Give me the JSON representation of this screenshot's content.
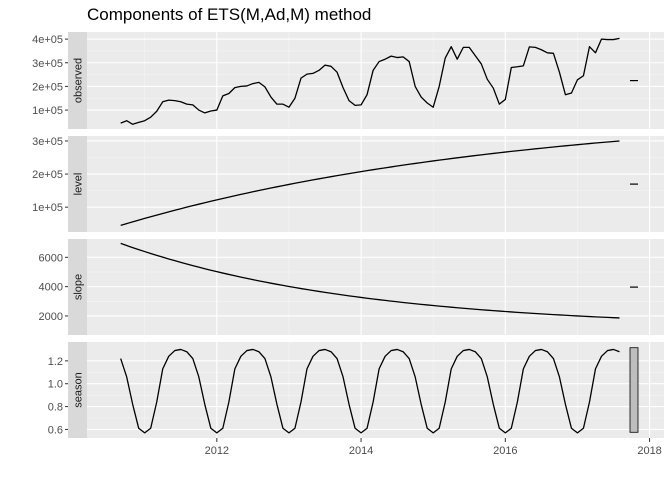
{
  "chart_data": {
    "type": "line",
    "title": "Components of ETS(M,Ad,M) method",
    "xlabel": "",
    "ylabel": "",
    "xlim": [
      2010.2,
      2018.2
    ],
    "x_ticks": [
      2012,
      2014,
      2016,
      2018
    ],
    "x_tick_labels": [
      "2012",
      "2014",
      "2016",
      "2018"
    ],
    "grid": true,
    "colors": {
      "panel_bg": "#ebebeb",
      "strip_bg": "#d9d9d9",
      "grid_major": "#ffffff",
      "line": "#000000",
      "scale_bar": "#bebebe"
    },
    "x": [
      2010.667,
      2010.75,
      2010.833,
      2010.917,
      2011,
      2011.083,
      2011.167,
      2011.25,
      2011.333,
      2011.417,
      2011.5,
      2011.583,
      2011.667,
      2011.75,
      2011.833,
      2011.917,
      2012,
      2012.083,
      2012.167,
      2012.25,
      2012.333,
      2012.417,
      2012.5,
      2012.583,
      2012.667,
      2012.75,
      2012.833,
      2012.917,
      2013,
      2013.083,
      2013.167,
      2013.25,
      2013.333,
      2013.417,
      2013.5,
      2013.583,
      2013.667,
      2013.75,
      2013.833,
      2013.917,
      2014,
      2014.083,
      2014.167,
      2014.25,
      2014.333,
      2014.417,
      2014.5,
      2014.583,
      2014.667,
      2014.75,
      2014.833,
      2014.917,
      2015,
      2015.083,
      2015.167,
      2015.25,
      2015.333,
      2015.417,
      2015.5,
      2015.583,
      2015.667,
      2015.75,
      2015.833,
      2015.917,
      2016,
      2016.083,
      2016.167,
      2016.25,
      2016.333,
      2016.417,
      2016.5,
      2016.583,
      2016.667,
      2016.75,
      2016.833,
      2016.917,
      2017,
      2017.083,
      2017.167,
      2017.25,
      2017.333,
      2017.417,
      2017.5,
      2017.583
    ],
    "panels": [
      {
        "name": "observed",
        "ylim": [
          20000,
          430000
        ],
        "y_ticks": [
          100000,
          200000,
          300000,
          400000
        ],
        "y_tick_labels": [
          "1e+05",
          "2e+05",
          "3e+05",
          "4e+05"
        ],
        "scale_bar": 1800,
        "values": [
          45000,
          55000,
          40000,
          48000,
          55000,
          70000,
          95000,
          135000,
          142000,
          140000,
          135000,
          125000,
          122000,
          100000,
          88000,
          96000,
          100000,
          160000,
          170000,
          195000,
          200000,
          202000,
          212000,
          217000,
          198000,
          155000,
          125000,
          125000,
          112000,
          150000,
          235000,
          252000,
          255000,
          268000,
          290000,
          285000,
          260000,
          195000,
          140000,
          120000,
          122000,
          165000,
          268000,
          305000,
          315000,
          328000,
          322000,
          325000,
          305000,
          200000,
          155000,
          130000,
          112000,
          200000,
          320000,
          368000,
          315000,
          365000,
          365000,
          330000,
          295000,
          230000,
          193000,
          125000,
          145000,
          280000,
          283000,
          287000,
          367000,
          365000,
          355000,
          342000,
          340000,
          260000,
          165000,
          172000,
          228000,
          245000,
          368000,
          342000,
          400000,
          398000,
          398000,
          403000
        ]
      },
      {
        "name": "level",
        "ylim": [
          25000,
          315000
        ],
        "y_ticks": [
          100000,
          200000,
          300000
        ],
        "y_tick_labels": [
          "1e+05",
          "2e+05",
          "3e+05"
        ],
        "scale_bar": 1300,
        "model": "level"
      },
      {
        "name": "slope",
        "ylim": [
          700,
          7250
        ],
        "y_ticks": [
          2000,
          4000,
          6000
        ],
        "y_tick_labels": [
          "2000",
          "4000",
          "6000"
        ],
        "scale_bar": 30,
        "model": "slope"
      },
      {
        "name": "season",
        "ylim": [
          0.525,
          1.365
        ],
        "y_ticks": [
          0.6,
          0.8,
          1.0,
          1.2
        ],
        "y_tick_labels": [
          "0.6",
          "0.8",
          "1.0",
          "1.2"
        ],
        "scale_bar": 0.74,
        "seasonal_cycle": [
          1.22,
          1.06,
          0.82,
          0.61,
          0.57,
          0.61,
          0.84,
          1.13,
          1.24,
          1.29,
          1.3,
          1.28
        ]
      }
    ]
  }
}
